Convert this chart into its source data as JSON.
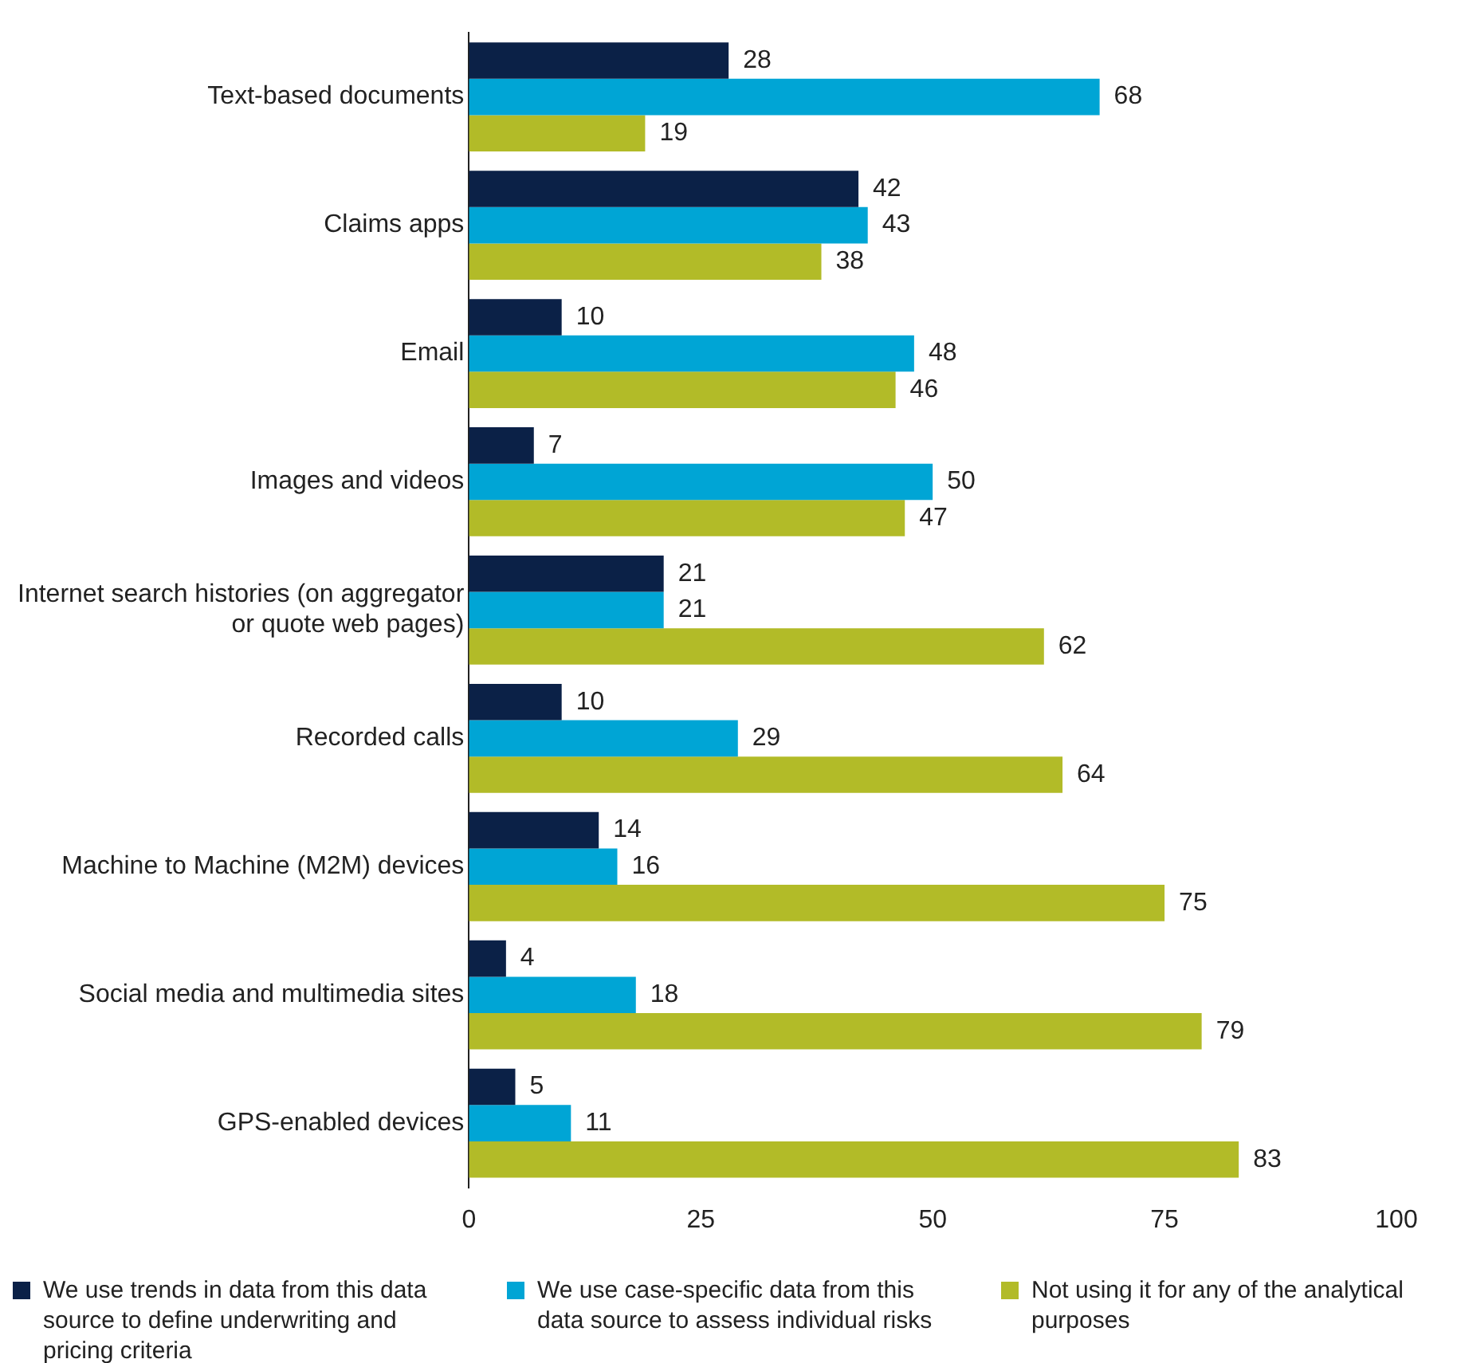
{
  "chart_data": {
    "type": "bar",
    "orientation": "horizontal",
    "categories": [
      "Text-based documents",
      "Claims apps",
      "Email",
      "Images and videos",
      "Internet search histories (on aggregator or quote web pages)",
      "Recorded calls",
      "Machine to Machine (M2M) devices",
      "Social media and multimedia sites",
      "GPS-enabled devices"
    ],
    "series": [
      {
        "name": "We use trends in data from this data source to define underwriting and pricing criteria",
        "color": "#0b2147",
        "values": [
          28,
          42,
          10,
          7,
          21,
          10,
          14,
          4,
          5
        ]
      },
      {
        "name": "We use case-specific data from this data source to assess individual risks",
        "color": "#00a5d5",
        "values": [
          68,
          43,
          48,
          50,
          21,
          29,
          16,
          18,
          11
        ]
      },
      {
        "name": "Not using it for any of the analytical purposes",
        "color": "#b2bb28",
        "values": [
          19,
          38,
          46,
          47,
          62,
          64,
          75,
          79,
          83
        ]
      }
    ],
    "xlim": [
      0,
      100
    ],
    "xticks": [
      0,
      25,
      50,
      75,
      100
    ],
    "grid": false,
    "legend": "bottom",
    "data_labels": true
  }
}
